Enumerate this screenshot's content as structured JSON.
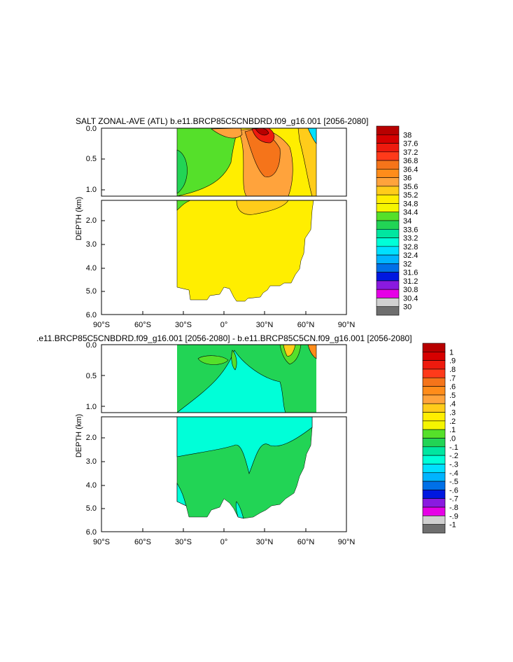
{
  "charts": [
    {
      "title": "SALT ZONAL-AVE (ATL) b.e11.BRCP85C5CNBDRD.f09_g16.001 [2056-2080]",
      "ylabel": "DEPTH (km)",
      "x_ticks": [
        "90°S",
        "60°S",
        "30°S",
        "0°",
        "30°N",
        "60°N",
        "90°N"
      ],
      "upper_y_ticks": [
        "0.0",
        "0.5",
        "1.0"
      ],
      "lower_y_ticks": [
        "2.0",
        "3.0",
        "4.0",
        "5.0",
        "6.0"
      ],
      "legend_labels": [
        "38",
        "37.6",
        "37.2",
        "36.8",
        "36.4",
        "36",
        "35.6",
        "35.2",
        "34.8",
        "34.4",
        "34",
        "33.6",
        "33.2",
        "32.8",
        "32.4",
        "32",
        "31.6",
        "31.2",
        "30.8",
        "30.4",
        "30"
      ],
      "legend_colors": [
        "#b80000",
        "#d60000",
        "#ee1a0e",
        "#ff3a1a",
        "#f5741a",
        "#ff8c1a",
        "#ffa33c",
        "#ffcc1a",
        "#ffee00",
        "#f5f500",
        "#55e02a",
        "#22d455",
        "#00e6a0",
        "#00ffd8",
        "#00e0ff",
        "#00b4ff",
        "#0070e8",
        "#0018e0",
        "#8a1ae0",
        "#e600e6",
        "#d0d0d0",
        "#6e6e6e"
      ]
    },
    {
      "title": ".e11.BRCP85C5CNBDRD.f09_g16.001 [2056-2080] - b.e11.BRCP85C5CN.f09_g16.001 [2056-2080]",
      "ylabel": "DEPTH (km)",
      "x_ticks": [
        "90°S",
        "60°S",
        "30°S",
        "0°",
        "30°N",
        "60°N",
        "90°N"
      ],
      "upper_y_ticks": [
        "0.0",
        "0.5",
        "1.0"
      ],
      "lower_y_ticks": [
        "2.0",
        "3.0",
        "4.0",
        "5.0",
        "6.0"
      ],
      "legend_labels": [
        "1",
        ".9",
        ".8",
        ".7",
        ".6",
        ".5",
        ".4",
        ".3",
        ".2",
        ".1",
        ".0",
        "-.1",
        "-.2",
        "-.3",
        "-.4",
        "-.5",
        "-.6",
        "-.7",
        "-.8",
        "-.9",
        "-1"
      ],
      "legend_colors": [
        "#b80000",
        "#d60000",
        "#ee1a0e",
        "#ff3a1a",
        "#f5741a",
        "#ff8c1a",
        "#ffa33c",
        "#ffcc1a",
        "#ffee00",
        "#f5f500",
        "#55e02a",
        "#22d455",
        "#00e6a0",
        "#00ffd8",
        "#00e0ff",
        "#00b4ff",
        "#0070e8",
        "#0018e0",
        "#8a1ae0",
        "#e600e6",
        "#d0d0d0",
        "#6e6e6e"
      ]
    }
  ],
  "chart_data": [
    {
      "type": "heatmap",
      "title": "SALT ZONAL-AVE (ATL) b.e11.BRCP85C5CNBDRD.f09_g16.001 [2056-2080]",
      "xlabel": "",
      "ylabel": "DEPTH (km)",
      "xlim": [
        -90,
        90
      ],
      "ylim": [
        6.0,
        0.0
      ],
      "colorbar_levels": [
        30,
        30.4,
        30.8,
        31.2,
        31.6,
        32,
        32.4,
        32.8,
        33.2,
        33.6,
        34,
        34.4,
        34.8,
        35.2,
        35.6,
        36,
        36.4,
        36.8,
        37.2,
        37.6,
        38
      ],
      "features": [
        {
          "region": "surface max near 25°N",
          "value_approx": 37.6
        },
        {
          "region": "subtropical north 0–1 km",
          "value_approx": 36.4
        },
        {
          "region": "south 0–1 km near 30°S",
          "value_approx": 34.4
        },
        {
          "region": "deep ocean 1.5–5.5 km",
          "value_approx": 35.0
        }
      ]
    },
    {
      "type": "heatmap",
      "title": ".e11.BRCP85C5CNBDRD.f09_g16.001 [2056-2080] - b.e11.BRCP85C5CN.f09_g16.001 [2056-2080]",
      "xlabel": "",
      "ylabel": "DEPTH (km)",
      "xlim": [
        -90,
        90
      ],
      "ylim": [
        6.0,
        0.0
      ],
      "colorbar_levels": [
        -1,
        -0.9,
        -0.8,
        -0.7,
        -0.6,
        -0.5,
        -0.4,
        -0.3,
        -0.2,
        -0.1,
        0,
        0.1,
        0.2,
        0.3,
        0.4,
        0.5,
        0.6,
        0.7,
        0.8,
        0.9,
        1
      ],
      "features": [
        {
          "region": "most of basin",
          "value_approx": 0.05
        },
        {
          "region": "intermediate water 0.3–3 km",
          "value_approx": -0.05
        },
        {
          "region": "near 60°N surface",
          "value_approx": 0.5
        }
      ]
    }
  ]
}
